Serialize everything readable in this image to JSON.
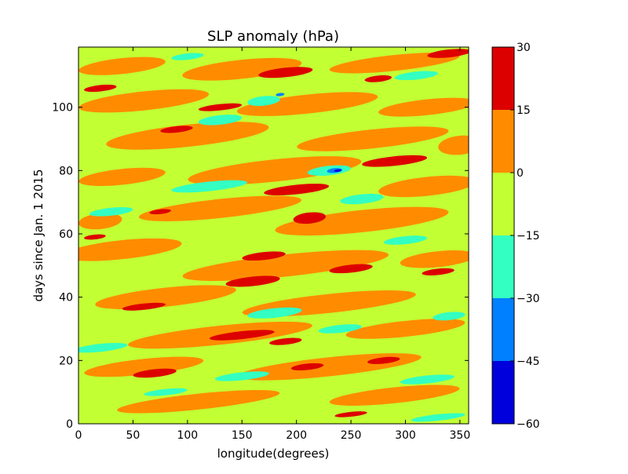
{
  "chart_data": {
    "type": "heatmap",
    "subtype": "filled-contour",
    "title": "SLP anomaly (hPa)",
    "xlabel": "longitude(degrees)",
    "ylabel": "days since Jan. 1 2015",
    "xlim": [
      0,
      358
    ],
    "ylim": [
      0,
      119
    ],
    "xticks": [
      0,
      50,
      100,
      150,
      200,
      250,
      300,
      350
    ],
    "yticks": [
      0,
      20,
      40,
      60,
      80,
      100
    ],
    "grid": false,
    "colorbar": {
      "position": "right",
      "ticks": [
        -60,
        -45,
        -30,
        -15,
        0,
        15,
        30
      ],
      "tick_labels": [
        "−60",
        "−45",
        "−30",
        "−15",
        "0",
        "15",
        "30"
      ],
      "levels": [
        {
          "min": -60,
          "max": -45,
          "color": "#0000dd"
        },
        {
          "min": -45,
          "max": -30,
          "color": "#0080ff"
        },
        {
          "min": -30,
          "max": -15,
          "color": "#33ffc2"
        },
        {
          "min": -15,
          "max": 0,
          "color": "#c2ff33"
        },
        {
          "min": 0,
          "max": 15,
          "color": "#ff8c00"
        },
        {
          "min": 15,
          "max": 30,
          "color": "#dd0000"
        }
      ]
    },
    "background_level_color": "#c2ff33",
    "blobs": [
      {
        "level": 4,
        "lon": 40,
        "day": 113,
        "w": 80,
        "h": 5
      },
      {
        "level": 4,
        "lon": 150,
        "day": 112,
        "w": 110,
        "h": 6
      },
      {
        "level": 4,
        "lon": 290,
        "day": 114,
        "w": 120,
        "h": 5
      },
      {
        "level": 4,
        "lon": 60,
        "day": 102,
        "w": 120,
        "h": 6
      },
      {
        "level": 4,
        "lon": 210,
        "day": 101,
        "w": 130,
        "h": 6
      },
      {
        "level": 4,
        "lon": 320,
        "day": 100,
        "w": 90,
        "h": 5
      },
      {
        "level": 4,
        "lon": 100,
        "day": 91,
        "w": 150,
        "h": 7
      },
      {
        "level": 4,
        "lon": 270,
        "day": 90,
        "w": 140,
        "h": 6
      },
      {
        "level": 4,
        "lon": 40,
        "day": 78,
        "w": 80,
        "h": 5
      },
      {
        "level": 4,
        "lon": 180,
        "day": 80,
        "w": 160,
        "h": 7
      },
      {
        "level": 4,
        "lon": 320,
        "day": 75,
        "w": 90,
        "h": 6
      },
      {
        "level": 4,
        "lon": 130,
        "day": 68,
        "w": 150,
        "h": 6
      },
      {
        "level": 4,
        "lon": 260,
        "day": 64,
        "w": 160,
        "h": 7
      },
      {
        "level": 4,
        "lon": 40,
        "day": 55,
        "w": 110,
        "h": 6
      },
      {
        "level": 4,
        "lon": 190,
        "day": 50,
        "w": 190,
        "h": 7
      },
      {
        "level": 4,
        "lon": 330,
        "day": 52,
        "w": 70,
        "h": 5
      },
      {
        "level": 4,
        "lon": 80,
        "day": 40,
        "w": 130,
        "h": 6
      },
      {
        "level": 4,
        "lon": 230,
        "day": 38,
        "w": 160,
        "h": 6
      },
      {
        "level": 4,
        "lon": 130,
        "day": 28,
        "w": 170,
        "h": 6
      },
      {
        "level": 4,
        "lon": 300,
        "day": 30,
        "w": 110,
        "h": 5
      },
      {
        "level": 4,
        "lon": 60,
        "day": 18,
        "w": 110,
        "h": 5
      },
      {
        "level": 4,
        "lon": 230,
        "day": 18,
        "w": 170,
        "h": 6
      },
      {
        "level": 4,
        "lon": 110,
        "day": 7,
        "w": 150,
        "h": 5
      },
      {
        "level": 4,
        "lon": 290,
        "day": 9,
        "w": 120,
        "h": 5
      },
      {
        "level": 4,
        "lon": 20,
        "day": 64,
        "w": 40,
        "h": 5
      },
      {
        "level": 4,
        "lon": 350,
        "day": 88,
        "w": 40,
        "h": 6
      },
      {
        "level": 2,
        "lon": 130,
        "day": 96,
        "w": 40,
        "h": 3
      },
      {
        "level": 2,
        "lon": 170,
        "day": 102,
        "w": 30,
        "h": 3
      },
      {
        "level": 2,
        "lon": 310,
        "day": 110,
        "w": 40,
        "h": 2.5
      },
      {
        "level": 2,
        "lon": 100,
        "day": 116,
        "w": 30,
        "h": 2
      },
      {
        "level": 2,
        "lon": 230,
        "day": 80,
        "w": 40,
        "h": 3
      },
      {
        "level": 2,
        "lon": 260,
        "day": 71,
        "w": 40,
        "h": 3
      },
      {
        "level": 2,
        "lon": 120,
        "day": 75,
        "w": 70,
        "h": 3
      },
      {
        "level": 2,
        "lon": 30,
        "day": 67,
        "w": 40,
        "h": 2.5
      },
      {
        "level": 2,
        "lon": 300,
        "day": 58,
        "w": 40,
        "h": 2.5
      },
      {
        "level": 2,
        "lon": 180,
        "day": 35,
        "w": 50,
        "h": 3
      },
      {
        "level": 2,
        "lon": 340,
        "day": 34,
        "w": 30,
        "h": 2.5
      },
      {
        "level": 2,
        "lon": 20,
        "day": 24,
        "w": 50,
        "h": 2.5
      },
      {
        "level": 2,
        "lon": 150,
        "day": 15,
        "w": 50,
        "h": 2.5
      },
      {
        "level": 2,
        "lon": 320,
        "day": 14,
        "w": 50,
        "h": 2.5
      },
      {
        "level": 2,
        "lon": 80,
        "day": 10,
        "w": 40,
        "h": 2
      },
      {
        "level": 2,
        "lon": 240,
        "day": 30,
        "w": 40,
        "h": 2.5
      },
      {
        "level": 2,
        "lon": 330,
        "day": 2,
        "w": 50,
        "h": 2
      },
      {
        "level": 1,
        "lon": 235,
        "day": 80,
        "w": 14,
        "h": 1.5
      },
      {
        "level": 1,
        "lon": 185,
        "day": 104,
        "w": 8,
        "h": 1
      },
      {
        "level": 0,
        "lon": 238,
        "day": 80,
        "w": 7,
        "h": 0.8
      },
      {
        "level": 5,
        "lon": 190,
        "day": 111,
        "w": 50,
        "h": 3
      },
      {
        "level": 5,
        "lon": 20,
        "day": 106,
        "w": 30,
        "h": 2
      },
      {
        "level": 5,
        "lon": 340,
        "day": 117,
        "w": 40,
        "h": 2.5
      },
      {
        "level": 5,
        "lon": 275,
        "day": 109,
        "w": 25,
        "h": 2
      },
      {
        "level": 5,
        "lon": 130,
        "day": 100,
        "w": 40,
        "h": 2
      },
      {
        "level": 5,
        "lon": 90,
        "day": 93,
        "w": 30,
        "h": 2
      },
      {
        "level": 5,
        "lon": 290,
        "day": 83,
        "w": 60,
        "h": 3
      },
      {
        "level": 5,
        "lon": 200,
        "day": 74,
        "w": 60,
        "h": 3
      },
      {
        "level": 5,
        "lon": 212,
        "day": 65,
        "w": 30,
        "h": 3.5
      },
      {
        "level": 5,
        "lon": 170,
        "day": 53,
        "w": 40,
        "h": 2.5
      },
      {
        "level": 5,
        "lon": 250,
        "day": 49,
        "w": 40,
        "h": 2.5
      },
      {
        "level": 5,
        "lon": 330,
        "day": 48,
        "w": 30,
        "h": 2
      },
      {
        "level": 5,
        "lon": 160,
        "day": 45,
        "w": 50,
        "h": 3
      },
      {
        "level": 5,
        "lon": 60,
        "day": 37,
        "w": 40,
        "h": 2
      },
      {
        "level": 5,
        "lon": 150,
        "day": 28,
        "w": 60,
        "h": 2.5
      },
      {
        "level": 5,
        "lon": 190,
        "day": 26,
        "w": 30,
        "h": 2
      },
      {
        "level": 5,
        "lon": 210,
        "day": 18,
        "w": 30,
        "h": 2
      },
      {
        "level": 5,
        "lon": 70,
        "day": 16,
        "w": 40,
        "h": 2.5
      },
      {
        "level": 5,
        "lon": 280,
        "day": 20,
        "w": 30,
        "h": 2
      },
      {
        "level": 5,
        "lon": 250,
        "day": 3,
        "w": 30,
        "h": 1.5
      },
      {
        "level": 5,
        "lon": 15,
        "day": 59,
        "w": 20,
        "h": 1.5
      },
      {
        "level": 5,
        "lon": 75,
        "day": 67,
        "w": 20,
        "h": 1.5
      }
    ]
  }
}
